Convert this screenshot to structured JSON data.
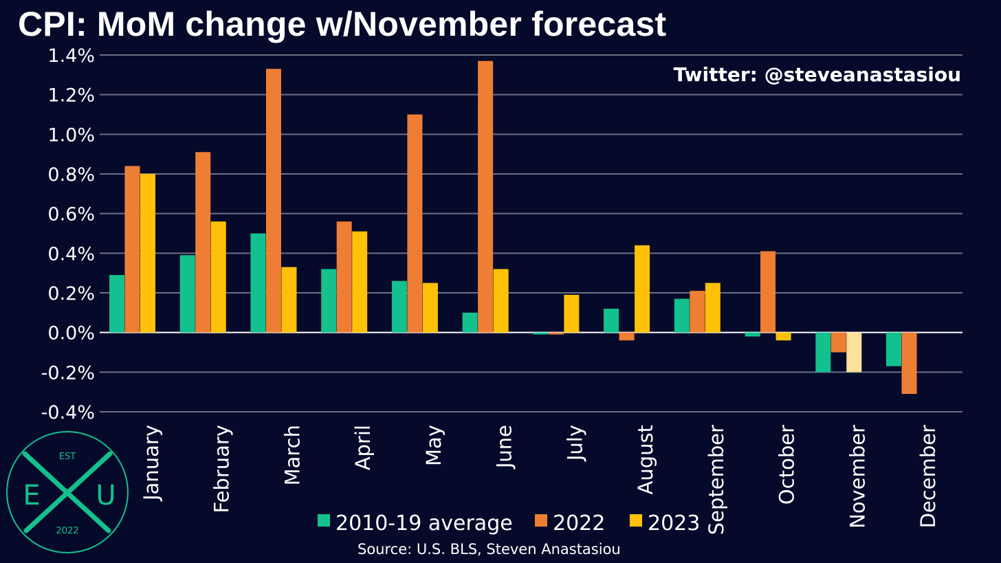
{
  "title": "CPI: MoM change w/November forecast",
  "watermark": "Twitter: @steveanastasiou",
  "source": "Source: U.S. BLS, Steven Anastasiou",
  "logo": {
    "top_text": "EST",
    "left_letter": "E",
    "right_letter": "U",
    "year": "2022"
  },
  "colors": {
    "background": "#050a2a",
    "gridline": "#6b6f86",
    "avg": "#13c18e",
    "y2022": "#ef7e35",
    "y2023": "#ffc107",
    "y2023_forecast": "#fde29a",
    "logo": "#13c18e"
  },
  "chart_data": {
    "type": "bar",
    "title": "CPI: MoM change w/November forecast",
    "categories": [
      "January",
      "February",
      "March",
      "April",
      "May",
      "June",
      "July",
      "August",
      "September",
      "October",
      "November",
      "December"
    ],
    "yticks": [
      "-0.4%",
      "-0.2%",
      "0.0%",
      "0.2%",
      "0.4%",
      "0.6%",
      "0.8%",
      "1.0%",
      "1.2%",
      "1.4%"
    ],
    "ylim": [
      -0.4,
      1.4
    ],
    "grid": true,
    "legend_position": "bottom",
    "series": [
      {
        "name": "2010-19 average",
        "values": [
          0.29,
          0.39,
          0.5,
          0.32,
          0.26,
          0.1,
          -0.01,
          0.12,
          0.17,
          -0.02,
          -0.2,
          -0.17
        ]
      },
      {
        "name": "2022",
        "values": [
          0.84,
          0.91,
          1.33,
          0.56,
          1.1,
          1.37,
          -0.01,
          -0.04,
          0.21,
          0.41,
          -0.1,
          -0.31
        ]
      },
      {
        "name": "2023",
        "values": [
          0.8,
          0.56,
          0.33,
          0.51,
          0.25,
          0.32,
          0.19,
          0.44,
          0.25,
          -0.04,
          -0.2,
          null
        ],
        "forecast_index": 10
      }
    ]
  }
}
